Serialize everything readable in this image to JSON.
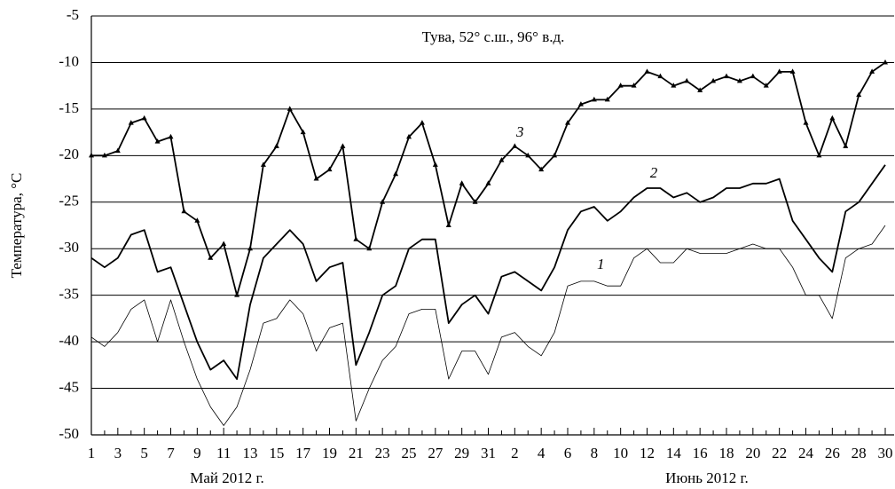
{
  "chart_data": {
    "type": "line",
    "annotation": "Тува, 52° с.ш., 96° в.д.",
    "ylabel": "Температура, °C",
    "month_labels": [
      "Май 2012 г.",
      "Июнь 2012 г."
    ],
    "categories": [
      "1",
      null,
      "3",
      null,
      "5",
      null,
      "7",
      null,
      "9",
      null,
      "11",
      null,
      "13",
      null,
      "15",
      null,
      "17",
      null,
      "19",
      null,
      "21",
      null,
      "23",
      null,
      "25",
      null,
      "27",
      null,
      "29",
      null,
      "31",
      null,
      "2",
      null,
      "4",
      null,
      "6",
      null,
      "8",
      null,
      "10",
      null,
      "12",
      null,
      "14",
      null,
      "16",
      null,
      "18",
      null,
      "20",
      null,
      "22",
      null,
      "24",
      null,
      "26",
      null,
      "28",
      null,
      "30"
    ],
    "ylim": [
      -50,
      -5
    ],
    "yticks": [
      -50,
      -45,
      -40,
      -35,
      -30,
      -25,
      -20,
      -15,
      -10,
      -5
    ],
    "grid": true,
    "series": [
      {
        "name": "1",
        "color": "#000000",
        "values": [
          -39.5,
          -40.5,
          -39,
          -36.5,
          -35.5,
          -40,
          -35.5,
          -40,
          -44,
          -47,
          -49,
          -47,
          -43,
          -38,
          -37.5,
          -35.5,
          -37,
          -41,
          -38.5,
          -38,
          -48.5,
          -45,
          -42,
          -40.5,
          -37,
          -36.5,
          -36.5,
          -44,
          -41,
          -41,
          -43.5,
          -39.5,
          -39,
          -40.5,
          -41.5,
          -39,
          -34,
          -33.5,
          -33.5,
          -34,
          -34,
          -31,
          -30,
          -31.5,
          -31.5,
          -30,
          -30.5,
          -30.5,
          -30.5,
          -30,
          -29.5,
          -30,
          -30,
          -32,
          -35,
          -35,
          -37.5,
          -31,
          -30,
          -29.5,
          -27.5
        ]
      },
      {
        "name": "2",
        "color": "#000000",
        "values": [
          -31,
          -32,
          -31,
          -28.5,
          -28,
          -32.5,
          -32,
          -36,
          -40,
          -43,
          -42,
          -44,
          -36,
          -31,
          -29.5,
          -28,
          -29.5,
          -33.5,
          -32,
          -31.5,
          -42.5,
          -39,
          -35,
          -34,
          -30,
          -29,
          -29,
          -38,
          -36,
          -35,
          -37,
          -33,
          -32.5,
          -33.5,
          -34.5,
          -32,
          -28,
          -26,
          -25.5,
          -27,
          -26,
          -24.5,
          -23.5,
          -23.5,
          -24.5,
          -24,
          -25,
          -24.5,
          -23.5,
          -23.5,
          -23,
          -23,
          -22.5,
          -27,
          -29,
          -31,
          -32.5,
          -26,
          -25,
          -23,
          -21
        ]
      },
      {
        "name": "3",
        "color": "#000000",
        "marker": "triangle",
        "values": [
          -20,
          -20,
          -19.5,
          -16.5,
          -16,
          -18.5,
          -18,
          -26,
          -27,
          -31,
          -29.5,
          -35,
          -30,
          -21,
          -19,
          -15,
          -17.5,
          -22.5,
          -21.5,
          -19,
          -29,
          -30,
          -25,
          -22,
          -18,
          -16.5,
          -21,
          -27.5,
          -23,
          -25,
          -23,
          -20.5,
          -19,
          -20,
          -21.5,
          -20,
          -16.5,
          -14.5,
          -14,
          -14,
          -12.5,
          -12.5,
          -11,
          -11.5,
          -12.5,
          -12,
          -13,
          -12,
          -11.5,
          -12,
          -11.5,
          -12.5,
          -11,
          -11,
          -16.5,
          -20,
          -16,
          -19,
          -13.5,
          -11,
          -10
        ]
      }
    ]
  }
}
